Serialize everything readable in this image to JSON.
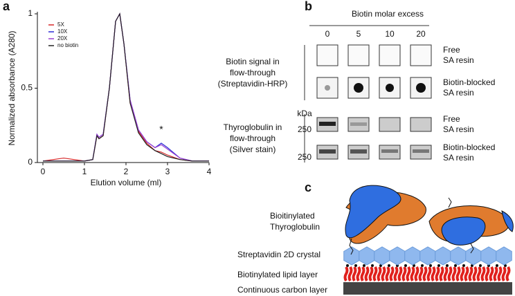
{
  "chart_data": {
    "type": "line",
    "panel": "a",
    "x_label": "Elution volume (ml)",
    "y_label": "Normalized absorbance (A280)",
    "annotation": "*",
    "x": [
      0,
      0.5,
      1.0,
      1.2,
      1.3,
      1.35,
      1.45,
      1.6,
      1.75,
      1.85,
      1.95,
      2.1,
      2.3,
      2.5,
      2.7,
      2.85,
      3.0,
      3.3,
      3.6,
      4.0
    ],
    "series": [
      {
        "name": "5X",
        "color": "#d62728",
        "values": [
          0.01,
          0.03,
          0.01,
          0.02,
          0.18,
          0.16,
          0.18,
          0.5,
          0.95,
          1.0,
          0.8,
          0.4,
          0.21,
          0.13,
          0.08,
          0.07,
          0.05,
          0.02,
          0.01,
          0.01
        ]
      },
      {
        "name": "10X",
        "color": "#2b2bd6",
        "values": [
          0.01,
          0.01,
          0.01,
          0.02,
          0.19,
          0.17,
          0.19,
          0.5,
          0.95,
          1.0,
          0.8,
          0.42,
          0.22,
          0.14,
          0.1,
          0.13,
          0.1,
          0.03,
          0.01,
          0.01
        ]
      },
      {
        "name": "20X",
        "color": "#9b3fd1",
        "values": [
          0.01,
          0.01,
          0.01,
          0.02,
          0.19,
          0.17,
          0.19,
          0.5,
          0.95,
          1.0,
          0.8,
          0.42,
          0.22,
          0.14,
          0.1,
          0.12,
          0.09,
          0.03,
          0.01,
          0.01
        ]
      },
      {
        "name": "no biotin",
        "color": "#222222",
        "values": [
          0.01,
          0.01,
          0.01,
          0.02,
          0.18,
          0.16,
          0.18,
          0.5,
          0.95,
          1.0,
          0.8,
          0.4,
          0.2,
          0.12,
          0.08,
          0.06,
          0.04,
          0.02,
          0.01,
          0.01
        ]
      }
    ],
    "xlim": [
      0,
      4
    ],
    "xticks": [
      0,
      1,
      2,
      3,
      4
    ],
    "ylim": [
      0,
      1
    ],
    "yticks": [
      0,
      0.5,
      1
    ],
    "legend": "upper left"
  },
  "panel_b": {
    "panel": "b",
    "header": "Biotin molar excess",
    "columns": [
      "0",
      "5",
      "10",
      "20"
    ],
    "row_groups": [
      {
        "label": [
          "Biotin signal in",
          "flow-through",
          "(Streptavidin-HRP)"
        ],
        "rows": [
          [
            "Free",
            "SA resin"
          ],
          [
            "Biotin-blocked",
            "SA resin"
          ]
        ]
      },
      {
        "label": [
          "Thyroglobulin in",
          "flow-through",
          "(Silver stain)"
        ],
        "rows": [
          [
            "Free",
            "SA resin"
          ],
          [
            "Biotin-blocked",
            "SA resin"
          ]
        ]
      }
    ],
    "unit": "kDa",
    "markers": [
      "250",
      "250"
    ]
  },
  "panel_c": {
    "panel": "c",
    "labels": [
      [
        "Bioitinylated",
        "Thyroglobulin"
      ],
      [
        "Streptavidin 2D crystal"
      ],
      [
        "Biotinylated lipid layer"
      ],
      [
        "Continuous carbon layer"
      ]
    ]
  }
}
